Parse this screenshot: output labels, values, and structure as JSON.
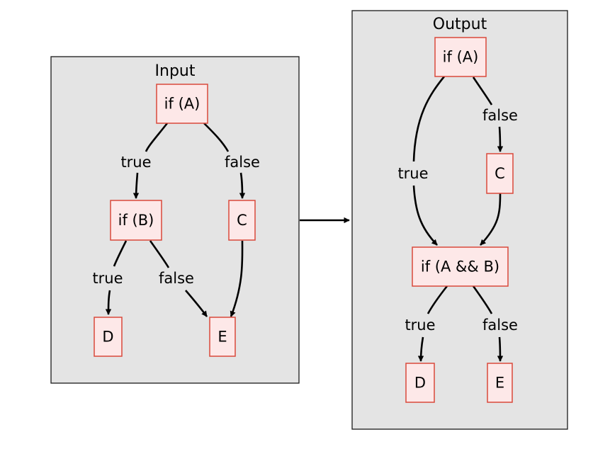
{
  "input": {
    "title": "Input",
    "nodes": {
      "if_a": "if (A)",
      "if_b": "if (B)",
      "c": "C",
      "d": "D",
      "e": "E"
    },
    "edges": {
      "a_true": "true",
      "a_false": "false",
      "b_true": "true",
      "b_false": "false"
    }
  },
  "output": {
    "title": "Output",
    "nodes": {
      "if_a": "if (A)",
      "c": "C",
      "if_ab": "if (A && B)",
      "d": "D",
      "e": "E"
    },
    "edges": {
      "a_false": "false",
      "a_true": "true",
      "ab_true": "true",
      "ab_false": "false"
    }
  },
  "colors": {
    "cluster_fill": "#e4e4e4",
    "node_fill": "#fde8e8",
    "node_stroke": "#d9493b",
    "edge": "#000000"
  }
}
